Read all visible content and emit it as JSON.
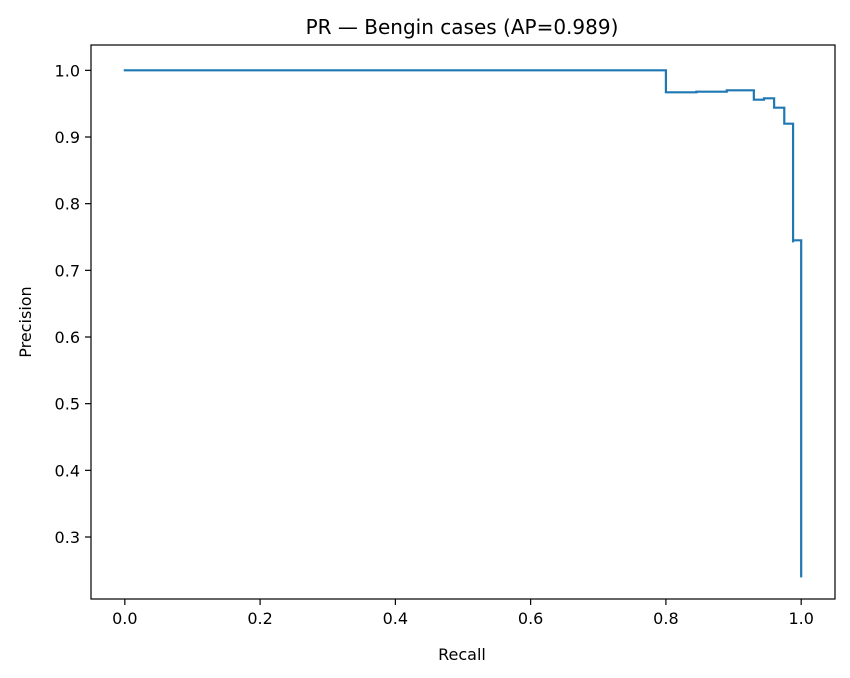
{
  "chart_data": {
    "type": "line",
    "title": "PR — Bengin cases (AP=0.989)",
    "xlabel": "Recall",
    "ylabel": "Precision",
    "xlim": [
      -0.05,
      1.05
    ],
    "ylim": [
      0.207,
      1.038
    ],
    "xticks": [
      0.0,
      0.2,
      0.4,
      0.6,
      0.8,
      1.0
    ],
    "xtick_labels": [
      "0.0",
      "0.2",
      "0.4",
      "0.6",
      "0.8",
      "1.0"
    ],
    "yticks": [
      0.3,
      0.4,
      0.5,
      0.6,
      0.7,
      0.8,
      0.9,
      1.0
    ],
    "ytick_labels": [
      "0.3",
      "0.4",
      "0.5",
      "0.6",
      "0.7",
      "0.8",
      "0.9",
      "1.0"
    ],
    "grid": false,
    "series": [
      {
        "name": "PR curve",
        "color": "#1f77b4",
        "step": "post",
        "x": [
          0.0,
          0.8,
          0.8,
          0.845,
          0.89,
          0.93,
          0.945,
          0.96,
          0.975,
          0.988,
          0.988,
          1.0,
          1.0
        ],
        "y": [
          1.0,
          1.0,
          0.967,
          0.968,
          0.97,
          0.956,
          0.958,
          0.944,
          0.92,
          0.742,
          0.745,
          0.745,
          0.241
        ]
      }
    ]
  }
}
